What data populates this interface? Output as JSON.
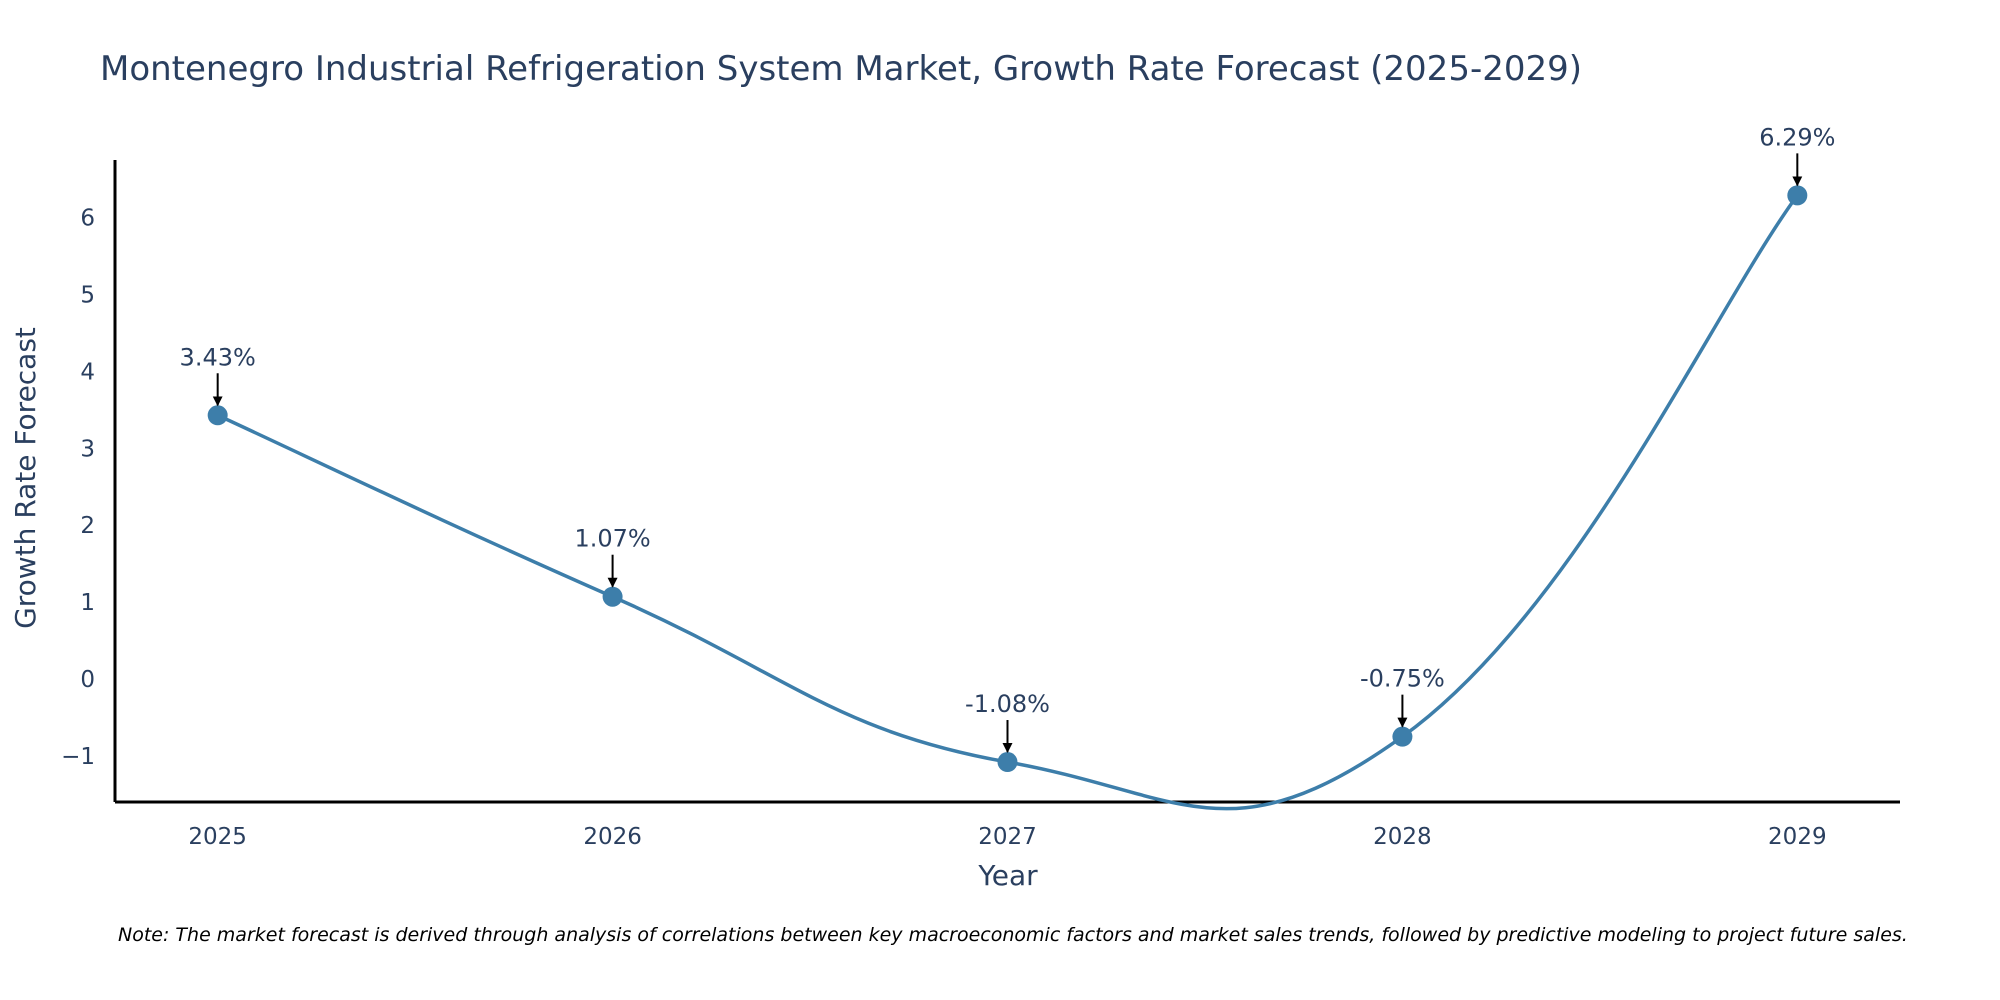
{
  "chart_data": {
    "type": "line",
    "title": "Montenegro Industrial Refrigeration System Market, Growth Rate Forecast (2025-2029)",
    "xlabel": "Year",
    "ylabel": "Growth Rate Forecast",
    "categories": [
      "2025",
      "2026",
      "2027",
      "2028",
      "2029"
    ],
    "series": [
      {
        "name": "Growth Rate Forecast",
        "values": [
          3.43,
          1.07,
          -1.08,
          -0.75,
          6.29
        ],
        "labels": [
          "3.43%",
          "1.07%",
          "-1.08%",
          "-0.75%",
          "6.29%"
        ]
      }
    ],
    "yticks": [
      {
        "value": -1,
        "label": "−1"
      },
      {
        "value": 0,
        "label": "0"
      },
      {
        "value": 1,
        "label": "1"
      },
      {
        "value": 2,
        "label": "2"
      },
      {
        "value": 3,
        "label": "3"
      },
      {
        "value": 4,
        "label": "4"
      },
      {
        "value": 5,
        "label": "5"
      },
      {
        "value": 6,
        "label": "6"
      }
    ],
    "ylim": [
      -1.6,
      6.75
    ],
    "xlim": [
      -0.26,
      4.26
    ],
    "grid": false,
    "legend": "none",
    "line_color": "#3d7eaa",
    "note": "Note: The market forecast is derived through analysis of correlations between key macroeconomic factors and market sales trends, followed by predictive modeling to project future sales."
  }
}
